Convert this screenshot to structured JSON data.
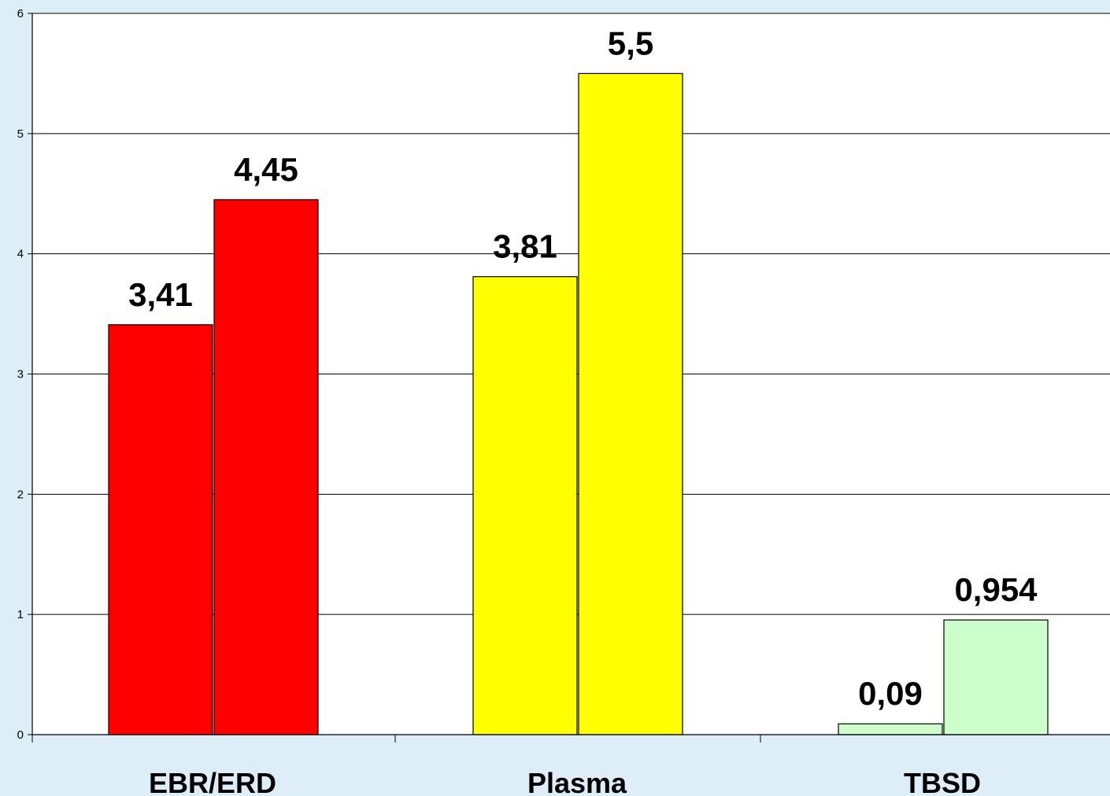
{
  "chart_data": {
    "type": "bar",
    "categories": [
      "EBR/ERD",
      "Plasma",
      "TBSD"
    ],
    "series": [
      {
        "values": [
          3.41,
          3.81,
          0.09
        ]
      },
      {
        "values": [
          4.45,
          5.5,
          0.954
        ]
      }
    ],
    "data_labels": [
      [
        "3,41",
        "3,81",
        "0,09"
      ],
      [
        "4,45",
        "5,5",
        "0,954"
      ]
    ],
    "category_colors": [
      "#ff0000",
      "#ffff00",
      "#ccffcc"
    ],
    "y_ticks": [
      "0",
      "1",
      "2",
      "3",
      "4",
      "5",
      "6"
    ],
    "ylim": [
      0,
      6
    ],
    "grid": true,
    "legend": "none",
    "plot_background": "#ffffff",
    "page_background": "#ddeef9"
  }
}
